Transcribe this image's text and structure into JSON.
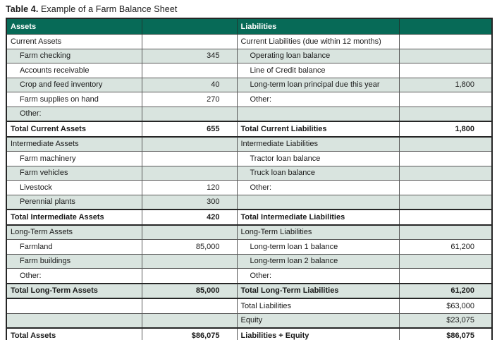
{
  "title": {
    "prefix": "Table 4.",
    "text": " Example of a Farm Balance Sheet"
  },
  "colors": {
    "header_bg": "#076a57",
    "header_text": "#ffffff",
    "alt_row_bg": "#d9e4df",
    "grid_border": "#5a5a5a",
    "heavy_border": "#262626"
  },
  "table": {
    "header": {
      "assets": "Assets",
      "assets_value": "",
      "liabilities": "Liabilities",
      "liabilities_value": ""
    },
    "rows": [
      {
        "a_label": "Current Assets",
        "a_value": "",
        "l_label": "Current Liabilities (due within 12 months)",
        "l_value": ""
      },
      {
        "a_label": "Farm checking",
        "a_value": "345",
        "l_label": "Operating loan balance",
        "l_value": ""
      },
      {
        "a_label": "Accounts receivable",
        "a_value": "",
        "l_label": "Line of Credit balance",
        "l_value": ""
      },
      {
        "a_label": "Crop and feed inventory",
        "a_value": "40",
        "l_label": "Long-term loan principal due this year",
        "l_value": "1,800"
      },
      {
        "a_label": "Farm supplies on hand",
        "a_value": "270",
        "l_label": "Other:",
        "l_value": ""
      },
      {
        "a_label": "Other:",
        "a_value": "",
        "l_label": "",
        "l_value": ""
      },
      {
        "a_label": "Total Current Assets",
        "a_value": "655",
        "l_label": "Total Current Liabilities",
        "l_value": "1,800"
      },
      {
        "a_label": "Intermediate Assets",
        "a_value": "",
        "l_label": "Intermediate Liabilities",
        "l_value": ""
      },
      {
        "a_label": "Farm machinery",
        "a_value": "",
        "l_label": "Tractor loan balance",
        "l_value": ""
      },
      {
        "a_label": "Farm vehicles",
        "a_value": "",
        "l_label": "Truck loan balance",
        "l_value": ""
      },
      {
        "a_label": "Livestock",
        "a_value": "120",
        "l_label": "Other:",
        "l_value": ""
      },
      {
        "a_label": "Perennial plants",
        "a_value": "300",
        "l_label": "",
        "l_value": ""
      },
      {
        "a_label": "Total Intermediate Assets",
        "a_value": "420",
        "l_label": "Total Intermediate Liabilities",
        "l_value": ""
      },
      {
        "a_label": "Long-Term Assets",
        "a_value": "",
        "l_label": "Long-Term Liabilities",
        "l_value": ""
      },
      {
        "a_label": "Farmland",
        "a_value": "85,000",
        "l_label": "Long-term loan 1 balance",
        "l_value": "61,200"
      },
      {
        "a_label": "Farm buildings",
        "a_value": "",
        "l_label": "Long-term loan 2 balance",
        "l_value": ""
      },
      {
        "a_label": "Other:",
        "a_value": "",
        "l_label": "Other:",
        "l_value": ""
      },
      {
        "a_label": "Total Long-Term Assets",
        "a_value": "85,000",
        "l_label": "Total Long-Term Liabilities",
        "l_value": "61,200"
      },
      {
        "a_label": "",
        "a_value": "",
        "l_label": "Total Liabilities",
        "l_value": "$63,000"
      },
      {
        "a_label": "",
        "a_value": "",
        "l_label": "Equity",
        "l_value": "$23,075"
      },
      {
        "a_label": "Total Assets",
        "a_value": "$86,075",
        "l_label": "Liabilities + Equity",
        "l_value": "$86,075"
      }
    ]
  }
}
